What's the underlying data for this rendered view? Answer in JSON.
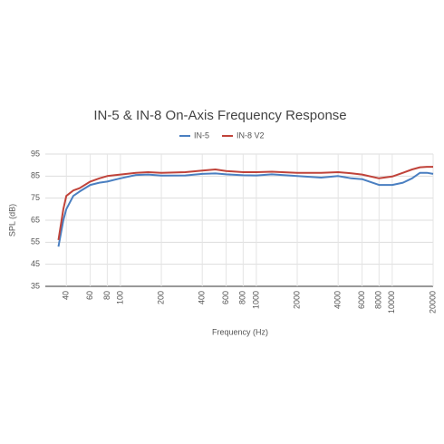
{
  "chart_data": {
    "type": "line",
    "title": "IN-5 & IN-8 On-Axis Frequency Response",
    "x_label": "Frequency (Hz)",
    "y_label": "SPL (dB)",
    "x": [
      35,
      38,
      40,
      45,
      50,
      60,
      70,
      80,
      100,
      130,
      160,
      200,
      300,
      400,
      500,
      600,
      800,
      1000,
      1300,
      2000,
      3000,
      4000,
      5000,
      6000,
      8000,
      10000,
      12000,
      14000,
      16000,
      18000,
      20000
    ],
    "series": [
      {
        "name": "IN-5",
        "color": "#4a7fc1",
        "values": [
          53,
          65,
          70,
          76,
          78,
          81,
          82,
          82.5,
          84,
          85.5,
          85.7,
          85.2,
          85.3,
          86,
          86.2,
          85.8,
          85.4,
          85.3,
          85.8,
          85,
          84.3,
          85,
          84,
          83.6,
          81,
          81,
          82,
          84,
          86.5,
          86.5,
          86
        ]
      },
      {
        "name": "IN-8 V2",
        "color": "#c0433a",
        "values": [
          56,
          70,
          76,
          78.5,
          79.5,
          82.5,
          84,
          85,
          85.7,
          86.5,
          86.8,
          86.5,
          86.8,
          87.5,
          88,
          87.3,
          86.8,
          86.8,
          87,
          86.5,
          86.5,
          86.8,
          86.3,
          85.7,
          84,
          84.8,
          86.5,
          88,
          89,
          89.2,
          89.2
        ]
      }
    ],
    "x_log": true,
    "xlim": [
      28,
      20000
    ],
    "xticks": [
      40,
      60,
      80,
      100,
      200,
      400,
      600,
      800,
      1000,
      2000,
      4000,
      6000,
      8000,
      10000,
      20000
    ],
    "ylim": [
      35,
      95
    ],
    "yticks": [
      35,
      45,
      55,
      65,
      75,
      85,
      95
    ],
    "grid": true,
    "legend": "top"
  }
}
